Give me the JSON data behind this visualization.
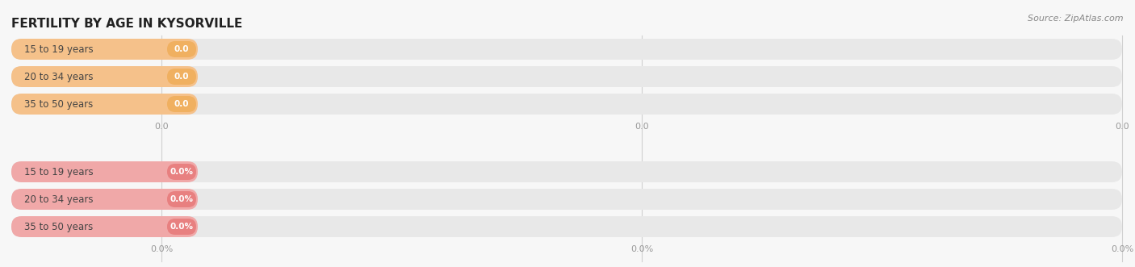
{
  "title": "FERTILITY BY AGE IN KYSORVILLE",
  "source": "Source: ZipAtlas.com",
  "group1": {
    "categories": [
      "15 to 19 years",
      "20 to 34 years",
      "35 to 50 years"
    ],
    "values": [
      0.0,
      0.0,
      0.0
    ],
    "bar_fill": "#f5c18a",
    "badge_fill": "#f0b060",
    "value_labels": [
      "0.0",
      "0.0",
      "0.0"
    ]
  },
  "group2": {
    "categories": [
      "15 to 19 years",
      "20 to 34 years",
      "35 to 50 years"
    ],
    "values": [
      0.0,
      0.0,
      0.0
    ],
    "bar_fill": "#f0a8a8",
    "badge_fill": "#e88080",
    "value_labels": [
      "0.0%",
      "0.0%",
      "0.0%"
    ]
  },
  "bg_color": "#f7f7f7",
  "bar_bg_color": "#e8e8e8",
  "title_color": "#222222",
  "label_text_color": "#444444",
  "tick_color": "#999999",
  "grid_color": "#cccccc",
  "fig_width": 14.06,
  "fig_height": 3.31,
  "tick_labels_g1": [
    "0.0",
    "0.0",
    "0.0"
  ],
  "tick_labels_g2": [
    "0.0%",
    "0.0%",
    "0.0%"
  ]
}
